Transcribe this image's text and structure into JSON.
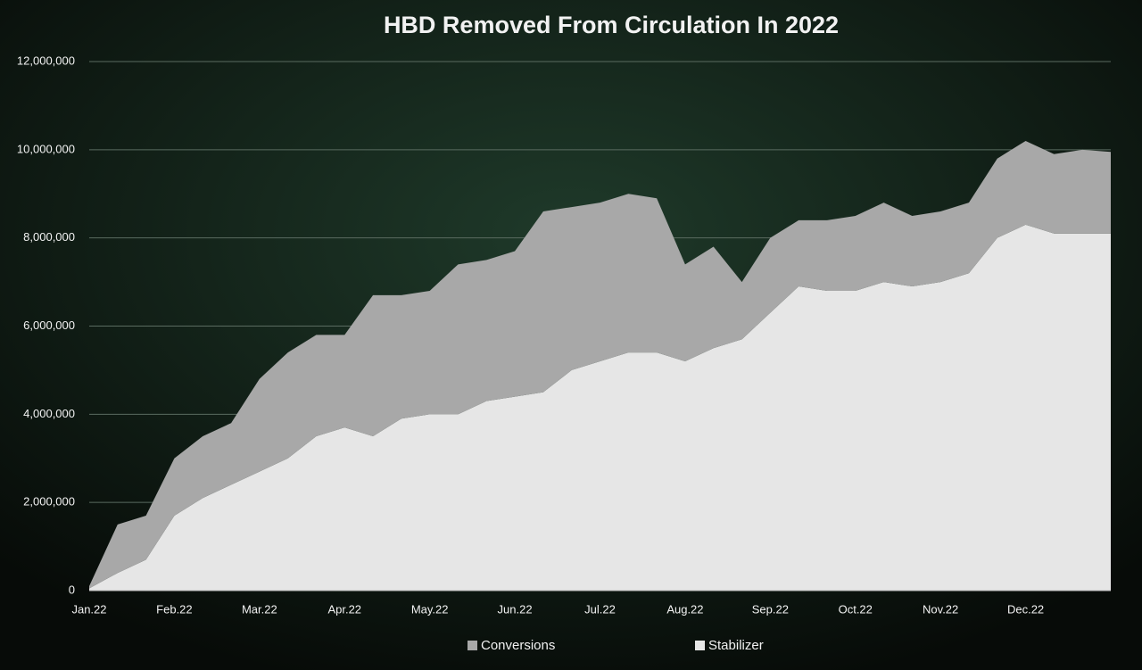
{
  "chart_data": {
    "type": "stacked-area",
    "title": "HBD Removed From Circulation In 2022",
    "categories": [
      "Jan.22",
      null,
      null,
      "Feb.22",
      null,
      null,
      "Mar.22",
      null,
      null,
      "Apr.22",
      null,
      null,
      "May.22",
      null,
      null,
      "Jun.22",
      null,
      null,
      "Jul.22",
      null,
      null,
      "Aug.22",
      null,
      null,
      "Sep.22",
      null,
      null,
      "Oct.22",
      null,
      null,
      "Nov.22",
      null,
      null,
      "Dec.22",
      null,
      null,
      null
    ],
    "series": [
      {
        "name": "Stabilizer",
        "color": "#e6e6e6",
        "values": [
          50000,
          400000,
          700000,
          1700000,
          2100000,
          2400000,
          2700000,
          3000000,
          3500000,
          3700000,
          3500000,
          3900000,
          4000000,
          4000000,
          4300000,
          4400000,
          4500000,
          5000000,
          5200000,
          5400000,
          5400000,
          5200000,
          5500000,
          5700000,
          6300000,
          6900000,
          6800000,
          6800000,
          7000000,
          6900000,
          7000000,
          7200000,
          8000000,
          8300000,
          8100000,
          8100000,
          8100000
        ]
      },
      {
        "name": "Conversions",
        "color": "#a8a8a8",
        "values": [
          50000,
          1100000,
          1000000,
          1300000,
          1400000,
          1400000,
          2100000,
          2400000,
          2300000,
          2100000,
          3200000,
          2800000,
          2800000,
          3400000,
          3200000,
          3300000,
          4100000,
          3700000,
          3600000,
          3600000,
          3500000,
          2200000,
          2300000,
          1300000,
          1700000,
          1500000,
          1600000,
          1700000,
          1800000,
          1600000,
          1600000,
          1600000,
          1800000,
          1900000,
          1800000,
          1900000,
          1850000
        ]
      }
    ],
    "legend_order": [
      "Conversions",
      "Stabilizer"
    ],
    "ylim": [
      0,
      12000000
    ],
    "yticks": [
      0,
      {
        "value": 2000000,
        "label": "2,000,000"
      },
      {
        "value": 4000000,
        "label": "4,000,000"
      },
      {
        "value": 6000000,
        "label": "6,000,000"
      },
      {
        "value": 8000000,
        "label": "8,000,000"
      },
      {
        "value": 10000000,
        "label": "10,000,000"
      },
      {
        "value": 12000000,
        "label": "12,000,000"
      }
    ],
    "grid": true,
    "legend": "bottom"
  }
}
